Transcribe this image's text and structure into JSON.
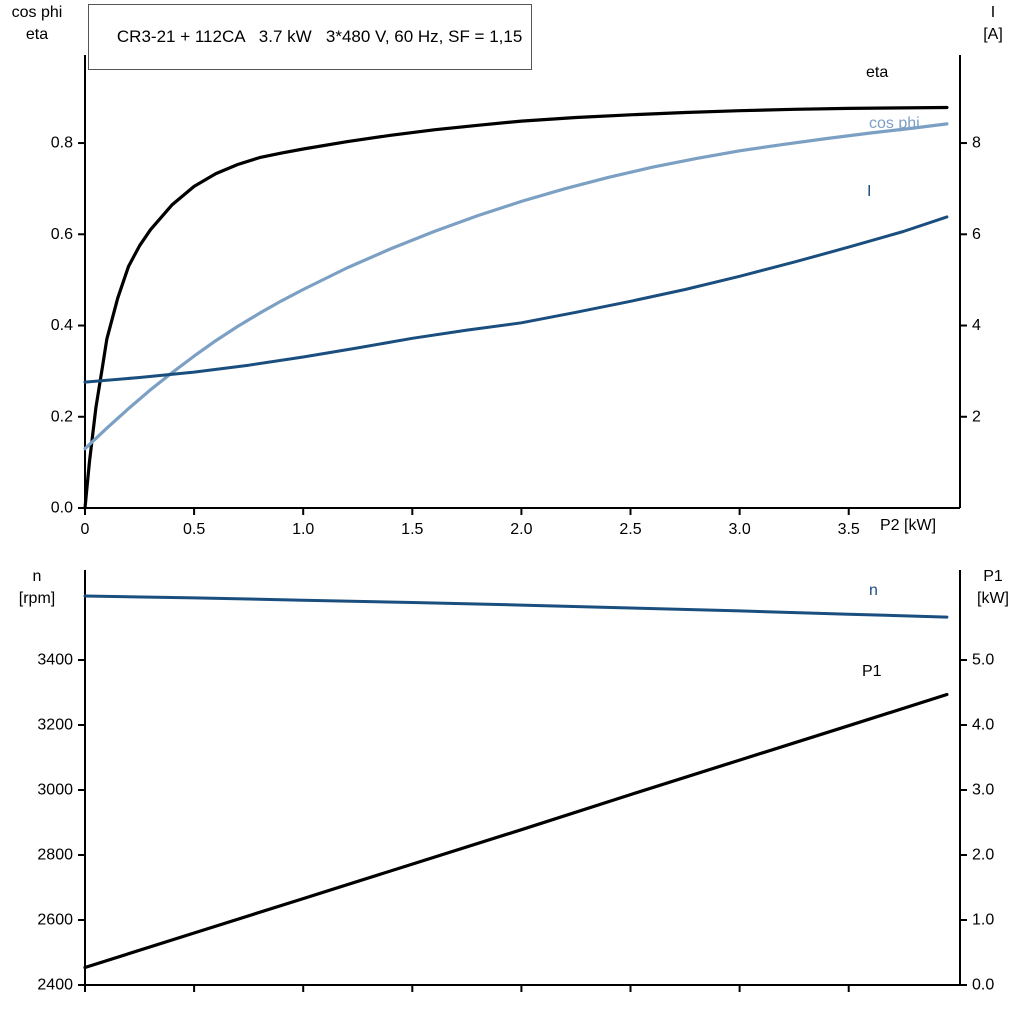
{
  "header": {
    "title": "CR3-21 + 112CA   3.7 kW   3*480 V, 60 Hz, SF = 1,15"
  },
  "colors": {
    "black": "#000000",
    "dark_blue": "#1a4e7e",
    "light_blue": "#7ca0c4",
    "axis": "#000000",
    "background": "#ffffff"
  },
  "chart_data": [
    {
      "type": "line",
      "title": "CR3-21 + 112CA   3.7 kW   3*480 V, 60 Hz, SF = 1,15",
      "x_label": "P2 [kW]",
      "y_left_label": [
        "cos phi",
        "eta"
      ],
      "y_right_label": [
        "I",
        "[A]"
      ],
      "x_range": [
        0,
        4.01
      ],
      "y_left_range": [
        0,
        0.993
      ],
      "y_right_range": [
        0,
        9.93
      ],
      "grid": false,
      "x_tick_values": [
        0,
        0.5,
        1,
        1.5,
        2,
        2.5,
        3,
        3.5
      ],
      "x_tick_labels": [
        "0",
        "0.5",
        "1.0",
        "1.5",
        "2.0",
        "2.5",
        "3.0",
        "3.5"
      ],
      "y_left_tick_values": [
        0,
        0.2,
        0.4,
        0.6,
        0.8
      ],
      "y_left_tick_labels": [
        "0.0",
        "0.2",
        "0.4",
        "0.6",
        "0.8"
      ],
      "y_right_tick_values": [
        2,
        4,
        6,
        8
      ],
      "y_right_tick_labels": [
        "2",
        "4",
        "6",
        "8"
      ],
      "series": [
        {
          "name": "eta",
          "axis": "left",
          "color": "#000000",
          "width": 3.2,
          "x": [
            0,
            0.02,
            0.05,
            0.08,
            0.1,
            0.15,
            0.2,
            0.25,
            0.3,
            0.4,
            0.5,
            0.6,
            0.7,
            0.8,
            0.9,
            1.0,
            1.2,
            1.4,
            1.6,
            1.8,
            2.0,
            2.25,
            2.5,
            2.75,
            3.0,
            3.25,
            3.5,
            3.75,
            3.95
          ],
          "y": [
            0,
            0.1,
            0.22,
            0.31,
            0.37,
            0.46,
            0.53,
            0.575,
            0.61,
            0.665,
            0.705,
            0.733,
            0.753,
            0.768,
            0.778,
            0.787,
            0.803,
            0.817,
            0.829,
            0.839,
            0.848,
            0.856,
            0.862,
            0.867,
            0.871,
            0.874,
            0.876,
            0.877,
            0.878
          ]
        },
        {
          "name": "cos phi",
          "axis": "left",
          "color": "#7ca0c4",
          "width": 3.2,
          "x": [
            0,
            0.1,
            0.2,
            0.3,
            0.4,
            0.5,
            0.6,
            0.7,
            0.8,
            0.9,
            1.0,
            1.2,
            1.4,
            1.6,
            1.8,
            2.0,
            2.2,
            2.4,
            2.6,
            2.8,
            3.0,
            3.2,
            3.4,
            3.6,
            3.8,
            3.95
          ],
          "y": [
            0.13,
            0.175,
            0.218,
            0.259,
            0.297,
            0.333,
            0.367,
            0.398,
            0.427,
            0.454,
            0.479,
            0.526,
            0.568,
            0.606,
            0.641,
            0.672,
            0.7,
            0.725,
            0.747,
            0.766,
            0.783,
            0.797,
            0.81,
            0.822,
            0.833,
            0.842
          ]
        },
        {
          "name": "I",
          "axis": "right",
          "color": "#1a4e7e",
          "width": 3,
          "x": [
            0,
            0.25,
            0.5,
            0.75,
            1.0,
            1.25,
            1.5,
            1.75,
            2.0,
            2.25,
            2.5,
            2.75,
            3.0,
            3.25,
            3.5,
            3.75,
            3.95
          ],
          "y": [
            2.76,
            2.86,
            2.98,
            3.13,
            3.31,
            3.51,
            3.72,
            3.9,
            4.06,
            4.29,
            4.53,
            4.79,
            5.08,
            5.39,
            5.72,
            6.06,
            6.38
          ]
        }
      ]
    },
    {
      "type": "line",
      "title": "",
      "x_label": "",
      "y_left_label": [
        "n",
        "[rpm]"
      ],
      "y_right_label": [
        "P1",
        "[kW]"
      ],
      "x_range": [
        0,
        4.01
      ],
      "y_left_range": [
        2400,
        3677
      ],
      "y_right_range": [
        0,
        6.385
      ],
      "grid": false,
      "x_tick_values": [
        0,
        0.5,
        1,
        1.5,
        2,
        2.5,
        3,
        3.5
      ],
      "x_tick_labels": [],
      "y_left_tick_values": [
        2400,
        2600,
        2800,
        3000,
        3200,
        3400
      ],
      "y_left_tick_labels": [
        "2400",
        "2600",
        "2800",
        "3000",
        "3200",
        "3400"
      ],
      "y_right_tick_values": [
        0,
        1,
        2,
        3,
        4,
        5
      ],
      "y_right_tick_labels": [
        "0.0",
        "1.0",
        "2.0",
        "3.0",
        "4.0",
        "5.0"
      ],
      "series": [
        {
          "name": "n",
          "axis": "left",
          "color": "#1a4e7e",
          "width": 3,
          "x": [
            0,
            0.5,
            1.0,
            1.5,
            2.0,
            2.5,
            3.0,
            3.5,
            3.95
          ],
          "y": [
            3597,
            3591,
            3584,
            3577,
            3569,
            3560,
            3551,
            3541,
            3532
          ]
        },
        {
          "name": "P1",
          "axis": "right",
          "color": "#000000",
          "width": 3.2,
          "x": [
            0,
            0.5,
            1.0,
            1.5,
            2.0,
            2.5,
            3.0,
            3.5,
            3.95
          ],
          "y": [
            0.27,
            0.8,
            1.33,
            1.86,
            2.39,
            2.93,
            3.46,
            3.99,
            4.47
          ]
        }
      ]
    }
  ]
}
